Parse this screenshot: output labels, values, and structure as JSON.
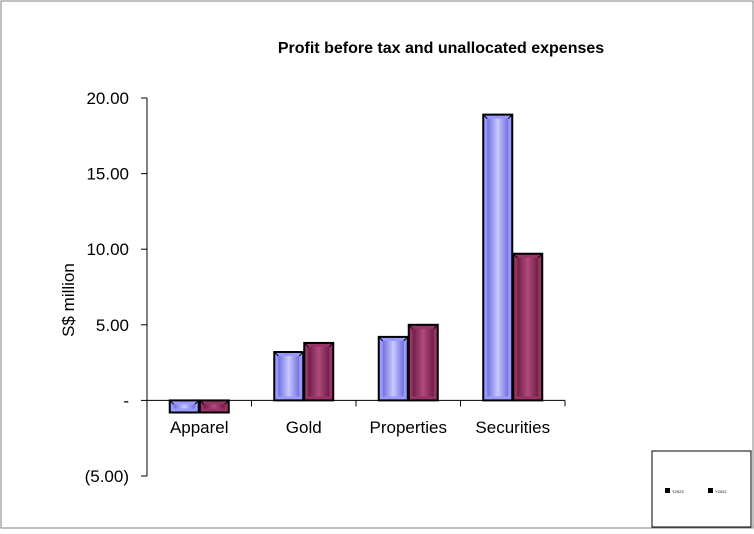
{
  "chart_data": {
    "type": "bar",
    "title": "Profit before tax and unallocated expenses",
    "ylabel": "S$ million",
    "xlabel": "",
    "categories": [
      "Apparel",
      "Gold",
      "Properties",
      "Securities"
    ],
    "series": [
      {
        "name": "Y2023",
        "values": [
          -0.8,
          3.2,
          4.2,
          18.9
        ],
        "color": "#9999ff"
      },
      {
        "name": "Y2022",
        "values": [
          -0.8,
          3.8,
          5.0,
          9.7
        ],
        "color": "#993366"
      }
    ],
    "ylim": [
      -5,
      20
    ],
    "yticks": [
      20,
      15,
      10,
      5,
      0,
      -5
    ],
    "ytick_labels": [
      "20.00",
      "15.00",
      "10.00",
      "5.00",
      "-",
      "(5.00)"
    ],
    "grid": false,
    "legend_position": "bottom-right"
  }
}
